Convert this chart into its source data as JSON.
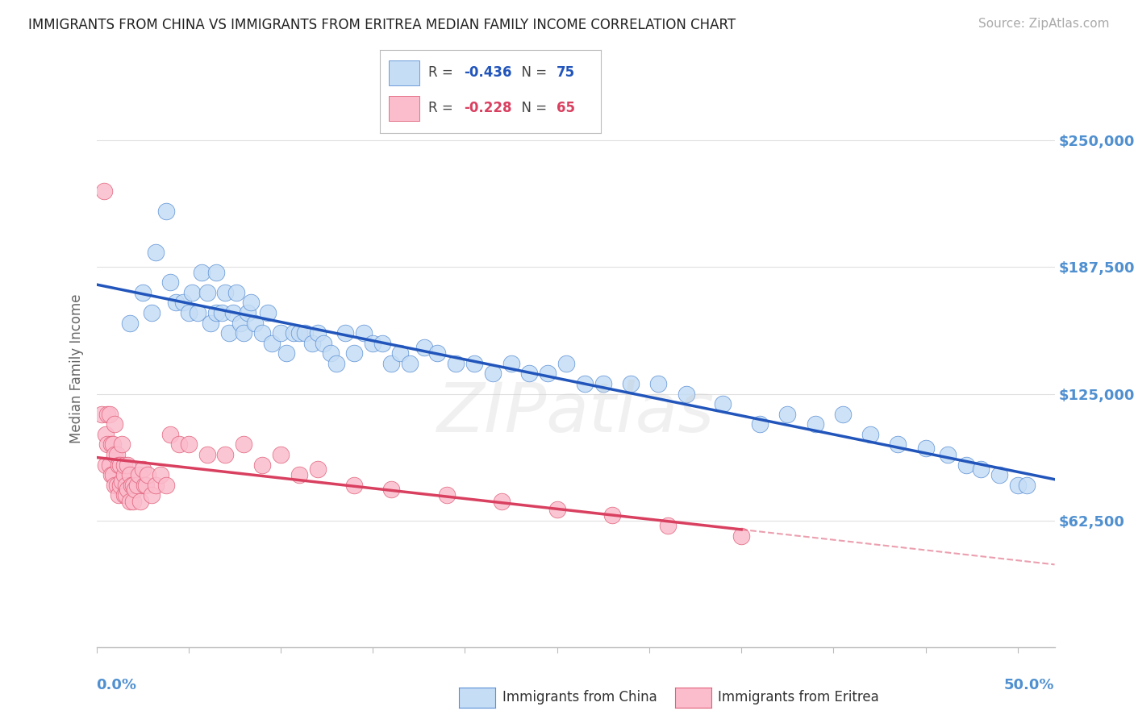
{
  "title": "IMMIGRANTS FROM CHINA VS IMMIGRANTS FROM ERITREA MEDIAN FAMILY INCOME CORRELATION CHART",
  "source": "Source: ZipAtlas.com",
  "ylabel": "Median Family Income",
  "xlim": [
    0.0,
    0.52
  ],
  "ylim": [
    0,
    275000
  ],
  "china_R": "-0.436",
  "china_N": "75",
  "eritrea_R": "-0.228",
  "eritrea_N": "65",
  "china_dot_fill": "#c5ddf5",
  "china_dot_edge": "#5b8fd4",
  "eritrea_dot_fill": "#fbbccc",
  "eritrea_dot_edge": "#e0607a",
  "china_line_color": "#2255bb",
  "eritrea_line_color": "#d94060",
  "bg_color": "#ffffff",
  "grid_color": "#e0e0e0",
  "title_color": "#222222",
  "source_color": "#aaaaaa",
  "label_color": "#5090d0",
  "axis_label_color": "#666666",
  "yticks": [
    0,
    62500,
    125000,
    187500,
    250000
  ],
  "ytick_labels": [
    "",
    "$62,500",
    "$125,000",
    "$187,500",
    "$250,000"
  ],
  "watermark_text": "ZIPatlas",
  "china_x": [
    0.018,
    0.025,
    0.03,
    0.032,
    0.038,
    0.04,
    0.043,
    0.047,
    0.05,
    0.052,
    0.055,
    0.057,
    0.06,
    0.062,
    0.065,
    0.065,
    0.068,
    0.07,
    0.072,
    0.074,
    0.076,
    0.078,
    0.08,
    0.082,
    0.084,
    0.086,
    0.09,
    0.093,
    0.095,
    0.1,
    0.103,
    0.107,
    0.11,
    0.113,
    0.117,
    0.12,
    0.123,
    0.127,
    0.13,
    0.135,
    0.14,
    0.145,
    0.15,
    0.155,
    0.16,
    0.165,
    0.17,
    0.178,
    0.185,
    0.195,
    0.205,
    0.215,
    0.225,
    0.235,
    0.245,
    0.255,
    0.265,
    0.275,
    0.29,
    0.305,
    0.32,
    0.34,
    0.36,
    0.375,
    0.39,
    0.405,
    0.42,
    0.435,
    0.45,
    0.462,
    0.472,
    0.48,
    0.49,
    0.5,
    0.505
  ],
  "china_y": [
    160000,
    175000,
    165000,
    195000,
    215000,
    180000,
    170000,
    170000,
    165000,
    175000,
    165000,
    185000,
    175000,
    160000,
    185000,
    165000,
    165000,
    175000,
    155000,
    165000,
    175000,
    160000,
    155000,
    165000,
    170000,
    160000,
    155000,
    165000,
    150000,
    155000,
    145000,
    155000,
    155000,
    155000,
    150000,
    155000,
    150000,
    145000,
    140000,
    155000,
    145000,
    155000,
    150000,
    150000,
    140000,
    145000,
    140000,
    148000,
    145000,
    140000,
    140000,
    135000,
    140000,
    135000,
    135000,
    140000,
    130000,
    130000,
    130000,
    130000,
    125000,
    120000,
    110000,
    115000,
    110000,
    115000,
    105000,
    100000,
    98000,
    95000,
    90000,
    88000,
    85000,
    80000,
    80000
  ],
  "eritrea_x": [
    0.003,
    0.004,
    0.005,
    0.005,
    0.006,
    0.006,
    0.007,
    0.007,
    0.008,
    0.008,
    0.009,
    0.009,
    0.01,
    0.01,
    0.01,
    0.011,
    0.011,
    0.012,
    0.012,
    0.013,
    0.013,
    0.014,
    0.014,
    0.015,
    0.015,
    0.015,
    0.016,
    0.016,
    0.017,
    0.017,
    0.018,
    0.018,
    0.019,
    0.02,
    0.02,
    0.021,
    0.022,
    0.023,
    0.024,
    0.025,
    0.026,
    0.027,
    0.028,
    0.03,
    0.032,
    0.035,
    0.038,
    0.04,
    0.045,
    0.05,
    0.06,
    0.07,
    0.08,
    0.09,
    0.1,
    0.11,
    0.12,
    0.14,
    0.16,
    0.19,
    0.22,
    0.25,
    0.28,
    0.31,
    0.35
  ],
  "eritrea_y": [
    115000,
    225000,
    105000,
    90000,
    115000,
    100000,
    115000,
    90000,
    100000,
    85000,
    100000,
    85000,
    110000,
    95000,
    80000,
    95000,
    80000,
    90000,
    75000,
    90000,
    80000,
    100000,
    82000,
    85000,
    75000,
    90000,
    80000,
    75000,
    90000,
    78000,
    85000,
    72000,
    80000,
    80000,
    72000,
    78000,
    80000,
    85000,
    72000,
    88000,
    80000,
    80000,
    85000,
    75000,
    80000,
    85000,
    80000,
    105000,
    100000,
    100000,
    95000,
    95000,
    100000,
    90000,
    95000,
    85000,
    88000,
    80000,
    78000,
    75000,
    72000,
    68000,
    65000,
    60000,
    55000
  ]
}
